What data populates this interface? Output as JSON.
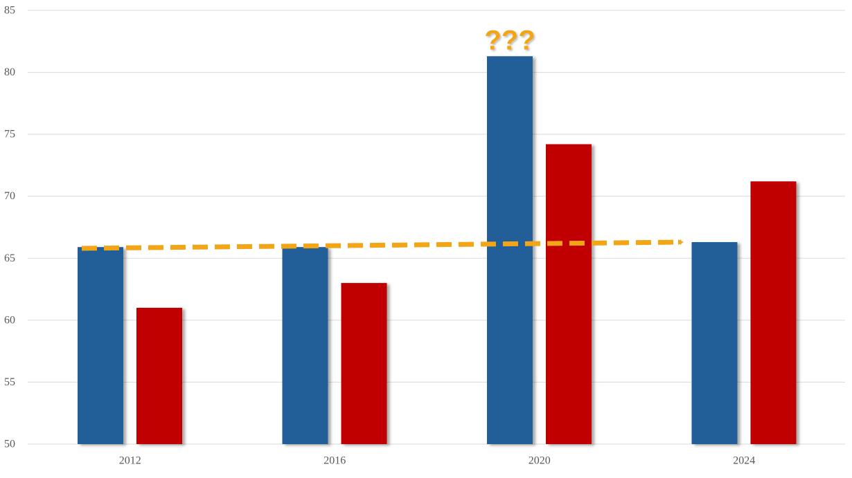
{
  "chart_data": {
    "type": "bar",
    "categories": [
      "2012",
      "2016",
      "2020",
      "2024"
    ],
    "series": [
      {
        "values": [
          65.9,
          65.9,
          81.3,
          66.3
        ],
        "color": "#225e98"
      },
      {
        "values": [
          61.0,
          63.0,
          74.2,
          71.2
        ],
        "color": "#c00000"
      }
    ],
    "ylim": [
      50,
      85
    ],
    "yticks": [
      50,
      55,
      60,
      65,
      70,
      75,
      80,
      85
    ],
    "grid": true,
    "title": "",
    "xlabel": "",
    "ylabel": "",
    "annotations": {
      "trend_arrow": {
        "from_category": "2012",
        "to_category": "2024",
        "from_value": 65.8,
        "to_value": 66.3,
        "color": "#f2a516",
        "style": "dashed"
      },
      "question": {
        "text": "???",
        "category": "2020",
        "color": "#f2a516"
      }
    }
  }
}
